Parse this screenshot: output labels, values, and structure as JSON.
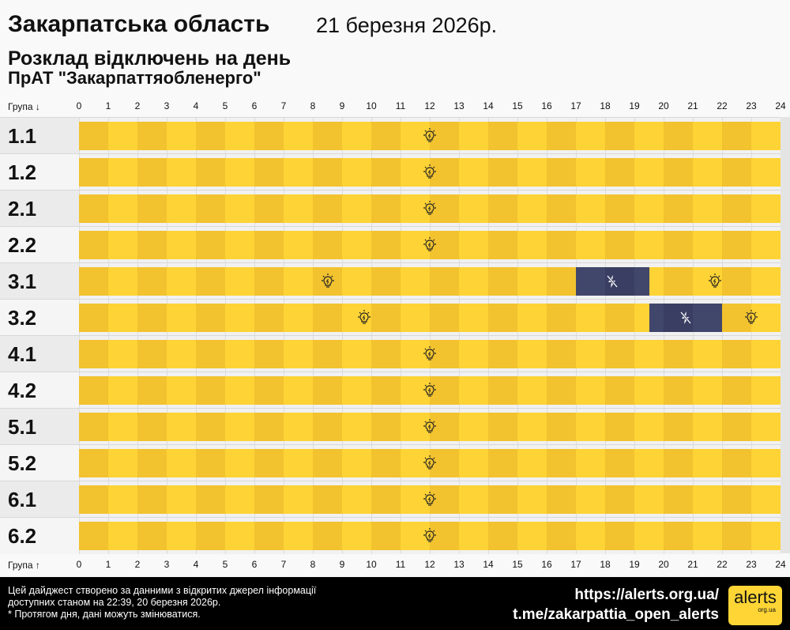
{
  "header": {
    "region": "Закарпатська область",
    "date": "21 березня 2026р.",
    "subtitle": "Розклад відключень на день",
    "company": "ПрАТ \"Закарпаттяобленерго\""
  },
  "axis": {
    "top_label": "Група ↓",
    "bottom_label": "Група ↑",
    "hours": [
      "0",
      "1",
      "2",
      "3",
      "4",
      "5",
      "6",
      "7",
      "8",
      "9",
      "10",
      "11",
      "12",
      "13",
      "14",
      "15",
      "16",
      "17",
      "18",
      "19",
      "20",
      "21",
      "22",
      "23",
      "24"
    ]
  },
  "colors": {
    "power_on_dark": "#f2c22f",
    "power_on_light": "#fed335",
    "power_off": "#3e4266",
    "label_bg_a": "#ebebeb",
    "label_bg_b": "#f5f5f5"
  },
  "icons": {
    "power_on": "lightbulb-icon",
    "power_off": "no-power-icon"
  },
  "groups": [
    {
      "name": "1.1",
      "segments": [
        {
          "from": 0,
          "to": 24,
          "state": "on"
        }
      ]
    },
    {
      "name": "1.2",
      "segments": [
        {
          "from": 0,
          "to": 24,
          "state": "on"
        }
      ]
    },
    {
      "name": "2.1",
      "segments": [
        {
          "from": 0,
          "to": 24,
          "state": "on"
        }
      ]
    },
    {
      "name": "2.2",
      "segments": [
        {
          "from": 0,
          "to": 24,
          "state": "on"
        }
      ]
    },
    {
      "name": "3.1",
      "segments": [
        {
          "from": 0,
          "to": 17,
          "state": "on"
        },
        {
          "from": 17,
          "to": 19.5,
          "state": "off"
        },
        {
          "from": 19.5,
          "to": 24,
          "state": "on"
        }
      ]
    },
    {
      "name": "3.2",
      "segments": [
        {
          "from": 0,
          "to": 19.5,
          "state": "on"
        },
        {
          "from": 19.5,
          "to": 22,
          "state": "off"
        },
        {
          "from": 22,
          "to": 24,
          "state": "on"
        }
      ]
    },
    {
      "name": "4.1",
      "segments": [
        {
          "from": 0,
          "to": 24,
          "state": "on"
        }
      ]
    },
    {
      "name": "4.2",
      "segments": [
        {
          "from": 0,
          "to": 24,
          "state": "on"
        }
      ]
    },
    {
      "name": "5.1",
      "segments": [
        {
          "from": 0,
          "to": 24,
          "state": "on"
        }
      ]
    },
    {
      "name": "5.2",
      "segments": [
        {
          "from": 0,
          "to": 24,
          "state": "on"
        }
      ]
    },
    {
      "name": "6.1",
      "segments": [
        {
          "from": 0,
          "to": 24,
          "state": "on"
        }
      ]
    },
    {
      "name": "6.2",
      "segments": [
        {
          "from": 0,
          "to": 24,
          "state": "on"
        }
      ]
    }
  ],
  "footer": {
    "note_line1": "Цей дайджест створено за данними з відкритих джерел інформації",
    "note_line2": "доступних станом на 22:39, 20 березня 2026р.",
    "note_line3": "* Протягом дня, дані можуть змінюватися.",
    "link_site": "https://alerts.org.ua/",
    "link_telegram": "t.me/zakarpattia_open_alerts",
    "logo_text": "alerts",
    "logo_sub": "org.ua"
  }
}
